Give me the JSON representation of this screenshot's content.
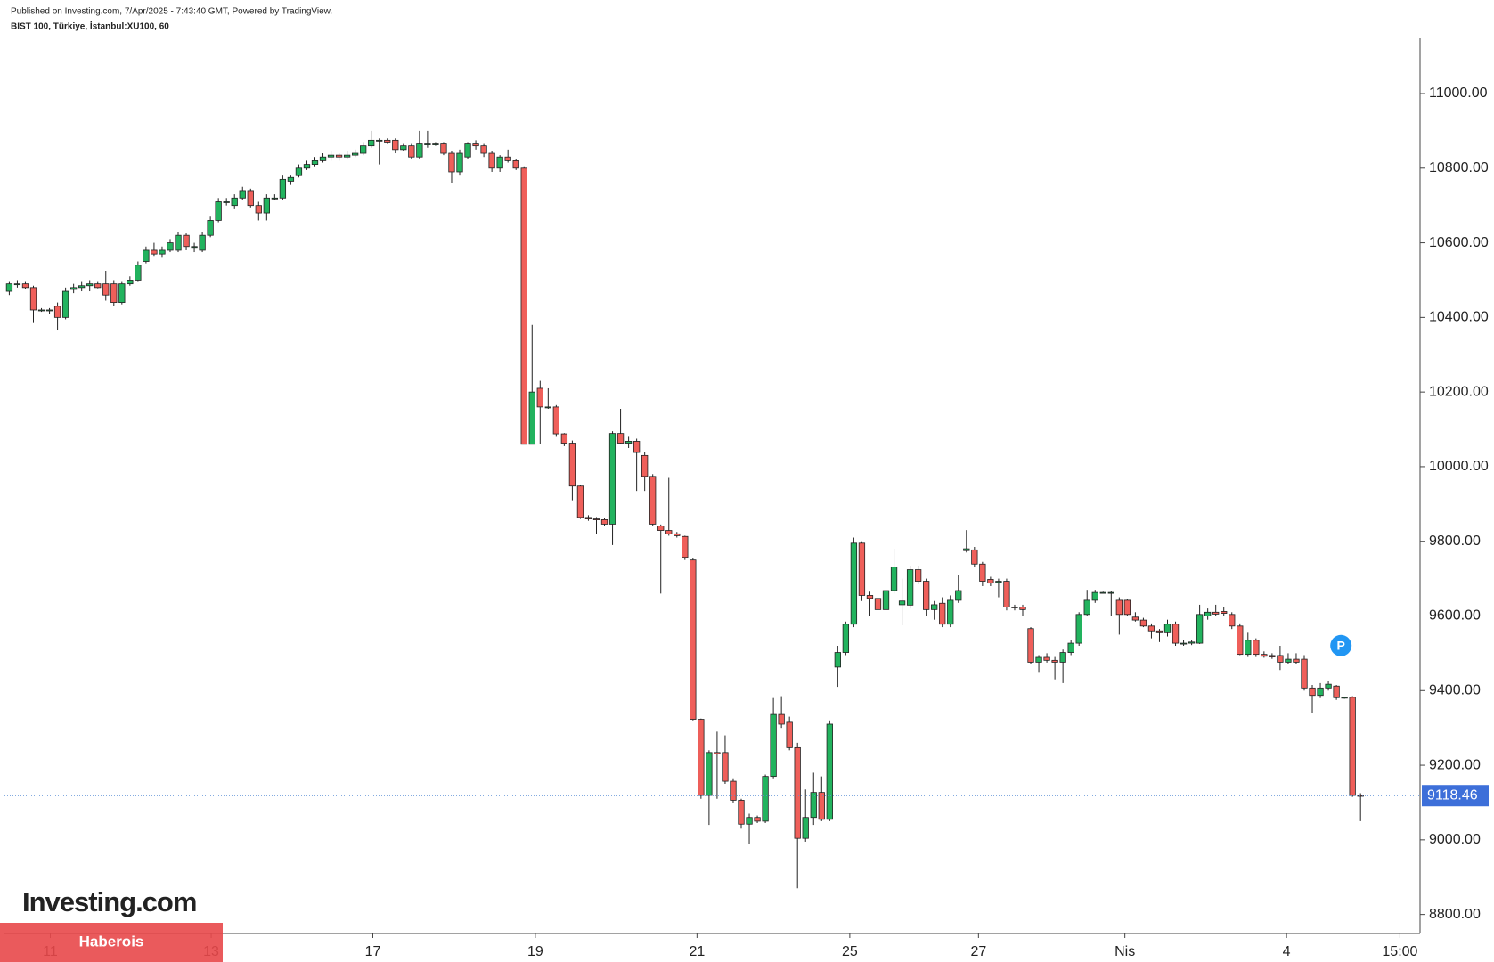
{
  "chart_data": {
    "type": "candlestick",
    "header": "Published on Investing.com, 7/Apr/2025 - 7:43:40 GMT, Powered by TradingView.",
    "title": "BIST 100, Türkiye, İstanbul:XU100, 60",
    "brand": "Investing.com",
    "watermark": "Haberois",
    "badge": "P",
    "up_color": "#22b35e",
    "down_color": "#ef5f5a",
    "line_color": "#5b8fd6",
    "label_color": "#3d6fd9",
    "last_price": 9118.46,
    "ylim": [
      8749,
      11148
    ],
    "yticks": [
      {
        "value": 8800,
        "label": "8800.00"
      },
      {
        "value": 9000,
        "label": "9000.00"
      },
      {
        "value": 9200,
        "label": "9200.00"
      },
      {
        "value": 9400,
        "label": "9400.00"
      },
      {
        "value": 9600,
        "label": "9600.00"
      },
      {
        "value": 9800,
        "label": "9800.00"
      },
      {
        "value": 10000,
        "label": "10000.00"
      },
      {
        "value": 10200,
        "label": "10200.00"
      },
      {
        "value": 10400,
        "label": "10400.00"
      },
      {
        "value": 10600,
        "label": "10600.00"
      },
      {
        "value": 10800,
        "label": "10800.00"
      },
      {
        "value": 11000,
        "label": "11000.00"
      }
    ],
    "xlim": [
      -0.6,
      175.4
    ],
    "xticks": [
      {
        "value": 5.1,
        "label": "11"
      },
      {
        "value": 25.1,
        "label": "13"
      },
      {
        "value": 45.2,
        "label": "17"
      },
      {
        "value": 65.4,
        "label": "19"
      },
      {
        "value": 85.5,
        "label": "21"
      },
      {
        "value": 104.5,
        "label": "25"
      },
      {
        "value": 120.5,
        "label": "27"
      },
      {
        "value": 138.7,
        "label": "Nis"
      },
      {
        "value": 158.8,
        "label": "4"
      },
      {
        "value": 172.9,
        "label": "15:00"
      }
    ],
    "ohlc": [
      [
        10470,
        10495,
        10460,
        10490
      ],
      [
        10490,
        10500,
        10480,
        10490
      ],
      [
        10490,
        10495,
        10475,
        10480
      ],
      [
        10480,
        10485,
        10385,
        10420
      ],
      [
        10420,
        10425,
        10415,
        10420
      ],
      [
        10420,
        10425,
        10410,
        10420
      ],
      [
        10430,
        10440,
        10365,
        10400
      ],
      [
        10400,
        10480,
        10395,
        10470
      ],
      [
        10475,
        10490,
        10465,
        10480
      ],
      [
        10480,
        10495,
        10470,
        10485
      ],
      [
        10485,
        10500,
        10470,
        10490
      ],
      [
        10490,
        10495,
        10478,
        10480
      ],
      [
        10490,
        10525,
        10445,
        10460
      ],
      [
        10490,
        10500,
        10430,
        10440
      ],
      [
        10440,
        10495,
        10435,
        10490
      ],
      [
        10490,
        10510,
        10485,
        10500
      ],
      [
        10500,
        10550,
        10495,
        10540
      ],
      [
        10550,
        10590,
        10545,
        10580
      ],
      [
        10580,
        10600,
        10565,
        10570
      ],
      [
        10570,
        10590,
        10560,
        10580
      ],
      [
        10580,
        10610,
        10575,
        10600
      ],
      [
        10580,
        10630,
        10575,
        10620
      ],
      [
        10620,
        10625,
        10580,
        10590
      ],
      [
        10590,
        10600,
        10575,
        10590
      ],
      [
        10580,
        10630,
        10575,
        10620
      ],
      [
        10620,
        10670,
        10615,
        10660
      ],
      [
        10660,
        10720,
        10655,
        10710
      ],
      [
        10710,
        10720,
        10700,
        10710
      ],
      [
        10700,
        10730,
        10690,
        10720
      ],
      [
        10720,
        10750,
        10715,
        10740
      ],
      [
        10740,
        10745,
        10695,
        10700
      ],
      [
        10700,
        10710,
        10660,
        10680
      ],
      [
        10680,
        10730,
        10660,
        10720
      ],
      [
        10720,
        10730,
        10715,
        10720
      ],
      [
        10720,
        10780,
        10715,
        10770
      ],
      [
        10765,
        10780,
        10755,
        10775
      ],
      [
        10780,
        10810,
        10775,
        10800
      ],
      [
        10800,
        10820,
        10795,
        10810
      ],
      [
        10810,
        10830,
        10805,
        10820
      ],
      [
        10820,
        10840,
        10815,
        10830
      ],
      [
        10830,
        10845,
        10820,
        10835
      ],
      [
        10835,
        10840,
        10820,
        10830
      ],
      [
        10830,
        10845,
        10825,
        10835
      ],
      [
        10835,
        10850,
        10830,
        10840
      ],
      [
        10840,
        10870,
        10835,
        10860
      ],
      [
        10860,
        10900,
        10855,
        10875
      ],
      [
        10875,
        10880,
        10810,
        10875
      ],
      [
        10875,
        10880,
        10865,
        10870
      ],
      [
        10875,
        10880,
        10840,
        10850
      ],
      [
        10850,
        10865,
        10845,
        10860
      ],
      [
        10860,
        10865,
        10825,
        10830
      ],
      [
        10830,
        10900,
        10825,
        10865
      ],
      [
        10865,
        10900,
        10855,
        10865
      ],
      [
        10865,
        10870,
        10860,
        10865
      ],
      [
        10865,
        10870,
        10835,
        10840
      ],
      [
        10840,
        10845,
        10760,
        10790
      ],
      [
        10790,
        10850,
        10780,
        10840
      ],
      [
        10830,
        10870,
        10825,
        10865
      ],
      [
        10865,
        10875,
        10850,
        10860
      ],
      [
        10860,
        10865,
        10830,
        10840
      ],
      [
        10840,
        10845,
        10790,
        10800
      ],
      [
        10800,
        10835,
        10790,
        10830
      ],
      [
        10830,
        10850,
        10815,
        10820
      ],
      [
        10820,
        10825,
        10795,
        10800
      ],
      [
        10800,
        10805,
        10060,
        10060
      ],
      [
        10060,
        10380,
        10060,
        10200
      ],
      [
        10210,
        10230,
        10060,
        10160
      ],
      [
        10160,
        10210,
        10155,
        10160
      ],
      [
        10160,
        10165,
        10080,
        10088
      ],
      [
        10088,
        10090,
        10055,
        10063
      ],
      [
        10063,
        10070,
        9910,
        9948
      ],
      [
        9948,
        9950,
        9860,
        9864
      ],
      [
        9864,
        9870,
        9855,
        9860
      ],
      [
        9860,
        9865,
        9820,
        9858
      ],
      [
        9858,
        9862,
        9840,
        9846
      ],
      [
        9846,
        10095,
        9790,
        10089
      ],
      [
        10089,
        10155,
        10060,
        10063
      ],
      [
        10063,
        10080,
        10050,
        10068
      ],
      [
        10068,
        10075,
        9935,
        10038
      ],
      [
        10030,
        10040,
        9935,
        9974
      ],
      [
        9974,
        9980,
        9840,
        9846
      ],
      [
        9841,
        9845,
        9660,
        9829
      ],
      [
        9829,
        9970,
        9815,
        9820
      ],
      [
        9820,
        9825,
        9810,
        9815
      ],
      [
        9813,
        9815,
        9750,
        9757
      ],
      [
        9750,
        9755,
        9320,
        9323
      ],
      [
        9323,
        9325,
        9110,
        9119
      ],
      [
        9119,
        9240,
        9040,
        9234
      ],
      [
        9234,
        9290,
        9110,
        9230
      ],
      [
        9234,
        9280,
        9150,
        9157
      ],
      [
        9157,
        9165,
        9100,
        9106
      ],
      [
        9106,
        9110,
        9030,
        9042
      ],
      [
        9042,
        9070,
        8990,
        9060
      ],
      [
        9060,
        9065,
        9045,
        9050
      ],
      [
        9050,
        9175,
        9045,
        9170
      ],
      [
        9170,
        9380,
        9165,
        9336
      ],
      [
        9336,
        9385,
        9300,
        9310
      ],
      [
        9315,
        9330,
        9240,
        9247
      ],
      [
        9247,
        9260,
        8870,
        9004
      ],
      [
        9004,
        9135,
        8995,
        9060
      ],
      [
        9060,
        9180,
        9040,
        9127
      ],
      [
        9127,
        9170,
        9050,
        9055
      ],
      [
        9055,
        9320,
        9050,
        9310
      ],
      [
        9463,
        9520,
        9410,
        9502
      ],
      [
        9502,
        9585,
        9495,
        9578
      ],
      [
        9578,
        9810,
        9570,
        9795
      ],
      [
        9795,
        9800,
        9640,
        9655
      ],
      [
        9655,
        9665,
        9600,
        9647
      ],
      [
        9647,
        9660,
        9570,
        9617
      ],
      [
        9617,
        9680,
        9590,
        9668
      ],
      [
        9668,
        9780,
        9660,
        9731
      ],
      [
        9630,
        9700,
        9575,
        9640
      ],
      [
        9629,
        9735,
        9620,
        9724
      ],
      [
        9724,
        9735,
        9685,
        9693
      ],
      [
        9693,
        9700,
        9600,
        9617
      ],
      [
        9617,
        9640,
        9590,
        9630
      ],
      [
        9634,
        9650,
        9570,
        9578
      ],
      [
        9578,
        9655,
        9570,
        9642
      ],
      [
        9642,
        9710,
        9635,
        9668
      ],
      [
        9775,
        9830,
        9770,
        9780
      ],
      [
        9777,
        9785,
        9730,
        9739
      ],
      [
        9739,
        9745,
        9680,
        9693
      ],
      [
        9698,
        9705,
        9680,
        9688
      ],
      [
        9690,
        9700,
        9650,
        9693
      ],
      [
        9693,
        9700,
        9615,
        9624
      ],
      [
        9624,
        9630,
        9615,
        9622
      ],
      [
        9624,
        9630,
        9600,
        9617
      ],
      [
        9566,
        9570,
        9470,
        9476
      ],
      [
        9476,
        9495,
        9450,
        9489
      ],
      [
        9489,
        9500,
        9475,
        9481
      ],
      [
        9481,
        9490,
        9430,
        9476
      ],
      [
        9476,
        9510,
        9420,
        9502
      ],
      [
        9502,
        9535,
        9495,
        9527
      ],
      [
        9527,
        9610,
        9520,
        9604
      ],
      [
        9604,
        9670,
        9600,
        9642
      ],
      [
        9642,
        9670,
        9635,
        9663
      ],
      [
        9663,
        9665,
        9660,
        9663
      ],
      [
        9663,
        9668,
        9600,
        9663
      ],
      [
        9642,
        9650,
        9550,
        9604
      ],
      [
        9642,
        9645,
        9600,
        9604
      ],
      [
        9597,
        9610,
        9585,
        9589
      ],
      [
        9589,
        9595,
        9570,
        9573
      ],
      [
        9573,
        9580,
        9540,
        9560
      ],
      [
        9560,
        9565,
        9530,
        9555
      ],
      [
        9555,
        9590,
        9545,
        9578
      ],
      [
        9578,
        9585,
        9520,
        9527
      ],
      [
        9527,
        9535,
        9520,
        9527
      ],
      [
        9527,
        9535,
        9522,
        9530
      ],
      [
        9527,
        9630,
        9525,
        9604
      ],
      [
        9600,
        9620,
        9590,
        9610
      ],
      [
        9610,
        9630,
        9600,
        9605
      ],
      [
        9612,
        9625,
        9600,
        9607
      ],
      [
        9604,
        9610,
        9565,
        9573
      ],
      [
        9573,
        9580,
        9495,
        9497
      ],
      [
        9497,
        9555,
        9490,
        9535
      ],
      [
        9535,
        9540,
        9490,
        9497
      ],
      [
        9497,
        9505,
        9488,
        9492
      ],
      [
        9494,
        9500,
        9485,
        9490
      ],
      [
        9494,
        9520,
        9455,
        9476
      ],
      [
        9476,
        9500,
        9470,
        9484
      ],
      [
        9484,
        9500,
        9470,
        9476
      ],
      [
        9484,
        9495,
        9400,
        9407
      ],
      [
        9407,
        9415,
        9340,
        9387
      ],
      [
        9387,
        9420,
        9380,
        9407
      ],
      [
        9407,
        9425,
        9400,
        9417
      ],
      [
        9412,
        9415,
        9375,
        9381
      ],
      [
        9382,
        9384,
        9378,
        9382
      ],
      [
        9382,
        9385,
        9115,
        9119
      ],
      [
        9119,
        9125,
        9050,
        9118.46
      ]
    ]
  }
}
